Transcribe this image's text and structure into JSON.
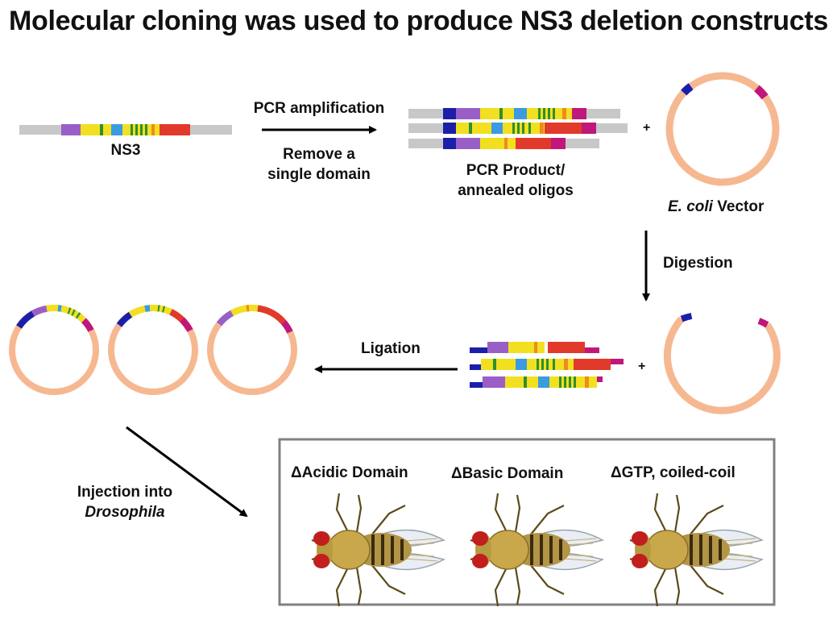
{
  "title": "Molecular cloning was used to produce NS3 deletion constructs",
  "labels": {
    "ns3": "NS3",
    "pcr_amplification": "PCR amplification",
    "remove_line1": "Remove a",
    "remove_line2": "single domain",
    "pcr_product_line1": "PCR Product/",
    "pcr_product_line2": "annealed oligos",
    "vector_italic": "E. coli",
    "vector_rest": " Vector",
    "digestion": "Digestion",
    "ligation": "Ligation",
    "injection_line1": "Injection into",
    "injection_line2": "Drosophila",
    "plus": "+"
  },
  "flies": [
    {
      "delta": "Δ",
      "label": "Acidic Domain"
    },
    {
      "delta": "Δ",
      "label": "Basic Domain"
    },
    {
      "delta": "Δ",
      "label": "GTP, coiled-coil"
    }
  ],
  "colors": {
    "backbone": "#c8c8c8",
    "plasmid": "#f6b891",
    "navy": "#1b1fa8",
    "purple": "#9a5fc6",
    "yellow": "#f2e020",
    "blue": "#3a9be0",
    "green": "#2f8f2f",
    "orange": "#f08a1e",
    "red": "#e23a2a",
    "magenta": "#c0187a",
    "arrow": "#000000",
    "box": "#808080"
  }
}
